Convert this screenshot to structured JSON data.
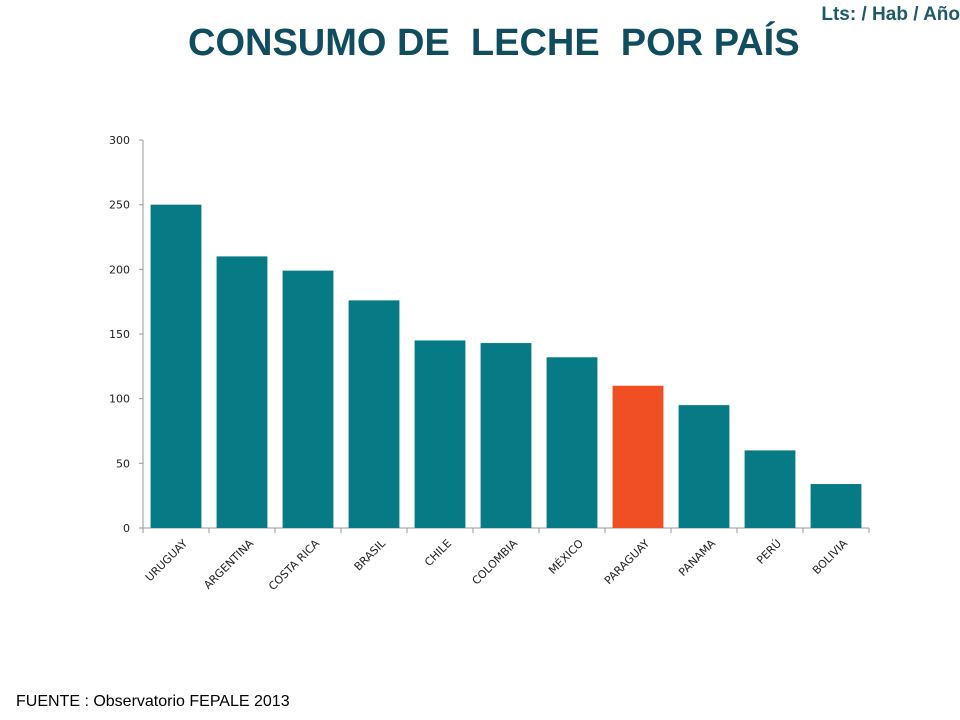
{
  "header": {
    "unit": "Lts: / Hab / Año",
    "title": "CONSUMO DE  LECHE  POR PAÍS"
  },
  "footer": {
    "source": "FUENTE : Observatorio FEPALE 2013"
  },
  "colors": {
    "bar": "#067b86",
    "highlight": "#f04e23",
    "axis": "#9a9a9a",
    "title": "#0f4d5f"
  },
  "chart_data": {
    "type": "bar",
    "categories": [
      "URUGUAY",
      "ARGENTINA",
      "COSTA RICA",
      "BRASIL",
      "CHILE",
      "COLOMBIA",
      "MÉXICO",
      "PARAGUAY",
      "PANAMA",
      "PERÚ",
      "BOLIVIA"
    ],
    "values": [
      250,
      210,
      199,
      176,
      145,
      143,
      132,
      110,
      95,
      60,
      34
    ],
    "highlight_category": "PARAGUAY",
    "ylim": [
      0,
      300
    ],
    "yticks": [
      0,
      50,
      100,
      150,
      200,
      250,
      300
    ],
    "xlabel": "",
    "ylabel": "",
    "grid": false,
    "legend": "none"
  }
}
